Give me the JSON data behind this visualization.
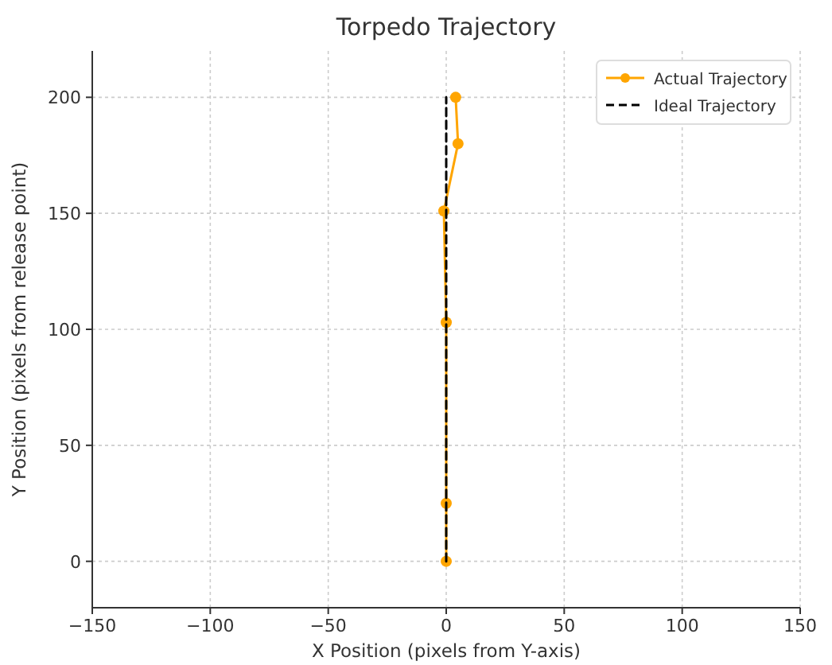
{
  "chart_data": {
    "type": "line",
    "title": "Torpedo Trajectory",
    "xlabel": "X Position (pixels from Y-axis)",
    "ylabel": "Y Position (pixels from release point)",
    "xlim": [
      -150,
      150
    ],
    "xticks": [
      {
        "value": -150,
        "label": "−150"
      },
      {
        "value": -100,
        "label": "−100"
      },
      {
        "value": -50,
        "label": "−50"
      },
      0,
      50,
      100,
      150
    ],
    "ylim": [
      -20,
      220
    ],
    "yticks": [
      0,
      50,
      100,
      150,
      200
    ],
    "grid": true,
    "legend": "top right",
    "series": [
      {
        "name": "Actual Trajectory",
        "color": "#ffa500",
        "x": [
          0,
          0,
          0,
          -1,
          5,
          4
        ],
        "values": [
          0,
          25,
          103,
          151,
          180,
          200
        ],
        "marker": "circle",
        "line_style": "solid"
      },
      {
        "name": "Ideal Trajectory",
        "color": "#000000",
        "x": [
          0,
          0
        ],
        "values": [
          0,
          200
        ],
        "marker": "none",
        "line_style": "dashed"
      }
    ]
  }
}
